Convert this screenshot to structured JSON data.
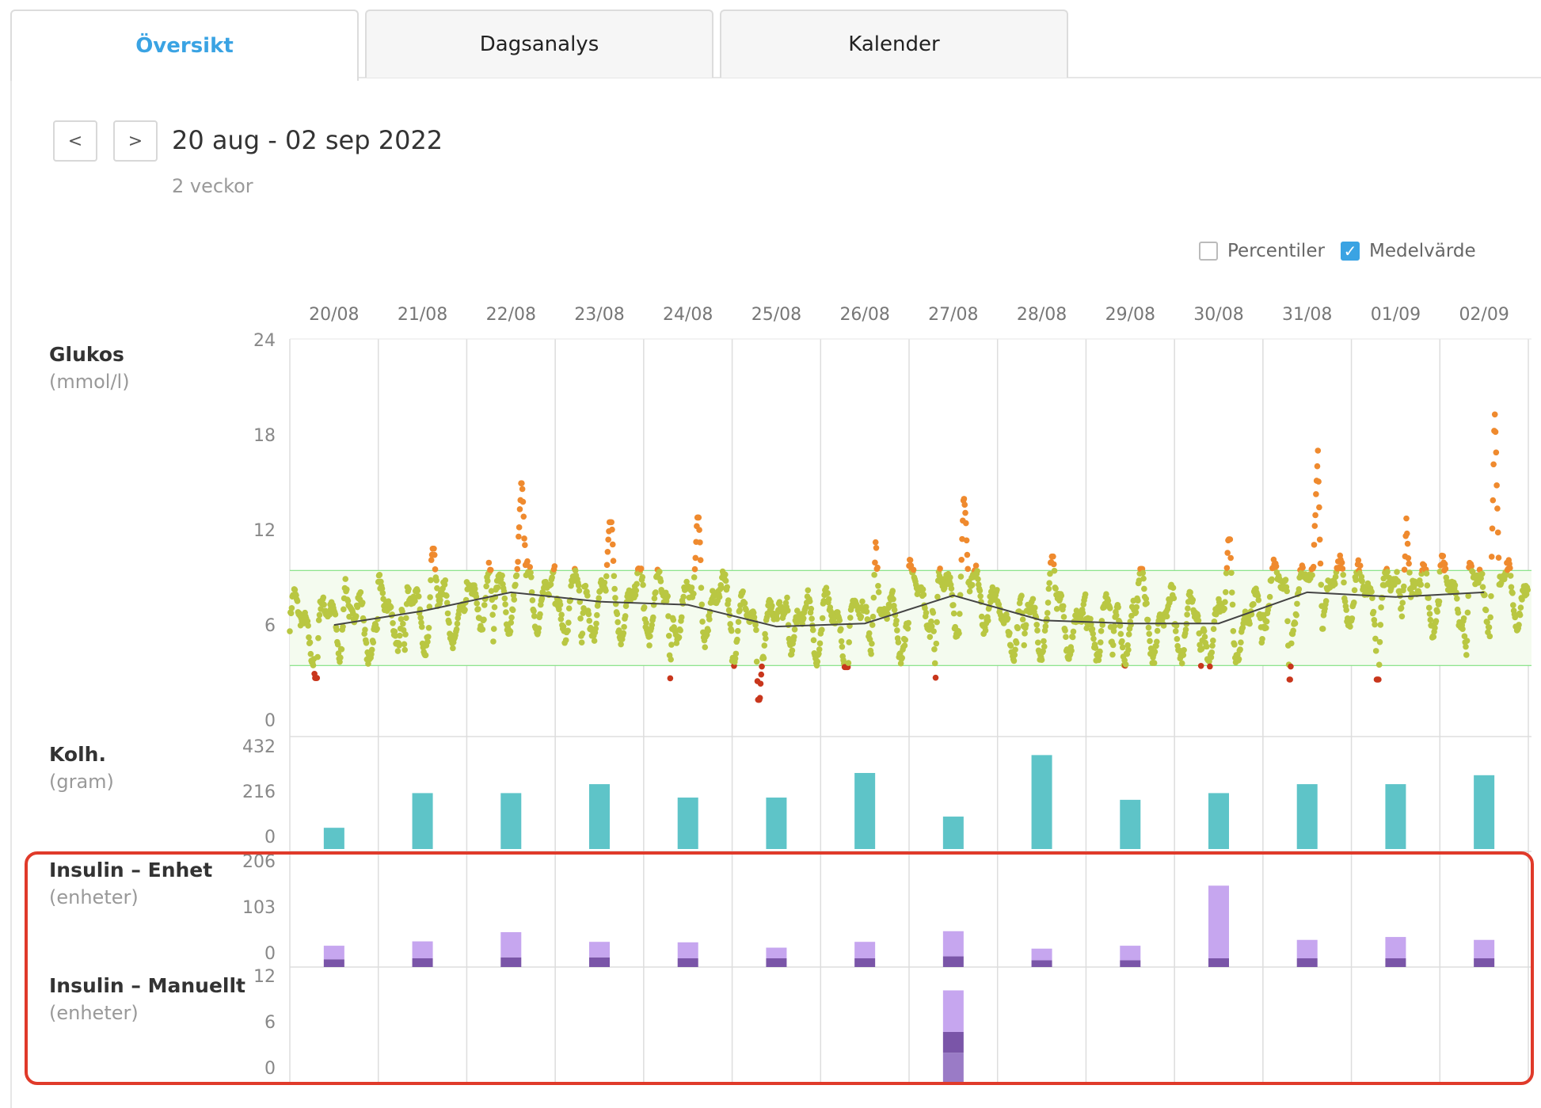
{
  "tabs": [
    {
      "label": "Översikt",
      "active": true
    },
    {
      "label": "Dagsanalys",
      "active": false
    },
    {
      "label": "Kalender",
      "active": false
    }
  ],
  "nav": {
    "prev": "<",
    "next": ">"
  },
  "period": {
    "title": "20 aug - 02 sep 2022",
    "subtitle": "2 veckor"
  },
  "options": {
    "percentiles_label": "Percentiler",
    "percentiles_checked": false,
    "mean_label": "Medelvärde",
    "mean_checked": true
  },
  "colors": {
    "accent": "#3aa3e3",
    "in_range": "#b9c742",
    "high": "#ef8a2e",
    "low": "#c8361c",
    "carbs": "#5ec4c8",
    "insulin_light": "#c6a6ef",
    "insulin_dark": "#7a55a8",
    "highlight": "#e03a2a",
    "target_band": "#7fe07f"
  },
  "chart_data": [
    {
      "type": "scatter",
      "title": "Glukos",
      "unit": "(mmol/l)",
      "categories": [
        "20/08",
        "21/08",
        "22/08",
        "23/08",
        "24/08",
        "25/08",
        "26/08",
        "27/08",
        "28/08",
        "29/08",
        "30/08",
        "31/08",
        "01/09",
        "02/09"
      ],
      "ylim": [
        0,
        24
      ],
      "yticks": [
        "0",
        "6",
        "12",
        "18",
        "24"
      ],
      "target_range": [
        3.9,
        10
      ],
      "daily_peak": [
        10.3,
        11.4,
        15.6,
        13.1,
        13.4,
        10.0,
        13.7,
        14.6,
        10.9,
        10.1,
        12.0,
        19.0,
        15.5,
        20.5
      ],
      "daily_low": [
        3.1,
        3.3,
        4.6,
        4.6,
        2.9,
        1.7,
        3.8,
        2.2,
        3.8,
        3.8,
        3.1,
        3.0,
        3.0,
        4.2
      ],
      "mean_line": [
        6.5,
        7.4,
        8.6,
        8.0,
        7.8,
        6.4,
        6.6,
        8.4,
        6.8,
        6.6,
        6.6,
        8.6,
        8.3,
        8.6
      ]
    },
    {
      "type": "bar",
      "title": "Kolh.",
      "unit": "(gram)",
      "ylim": [
        0,
        432
      ],
      "yticks": [
        "0",
        "216",
        "432"
      ],
      "values": [
        95,
        250,
        250,
        290,
        230,
        230,
        340,
        145,
        420,
        220,
        250,
        290,
        290,
        330
      ]
    },
    {
      "type": "bar",
      "title": "Insulin – Enhet",
      "unit": "(enheter)",
      "ylim": [
        0,
        206
      ],
      "yticks": [
        "0",
        "103",
        "206"
      ],
      "series": [
        {
          "values": [
            16,
            18,
            20,
            20,
            18,
            18,
            18,
            22,
            14,
            14,
            18,
            18,
            18,
            18
          ]
        },
        {
          "values": [
            28,
            35,
            52,
            32,
            33,
            22,
            34,
            52,
            24,
            30,
            150,
            38,
            44,
            38
          ]
        }
      ]
    },
    {
      "type": "bar",
      "title": "Insulin – Manuellt",
      "unit": "(enheter)",
      "ylim": [
        0,
        12
      ],
      "yticks": [
        "0",
        "6",
        "12"
      ],
      "series": [
        {
          "values": [
            0,
            0,
            0,
            0,
            0,
            0,
            0,
            3.5,
            0,
            0,
            0,
            0,
            0,
            0
          ]
        },
        {
          "values": [
            0,
            0,
            0,
            0,
            0,
            0,
            0,
            2.5,
            0,
            0,
            0,
            0,
            0,
            0
          ]
        },
        {
          "values": [
            0,
            0,
            0,
            0,
            0,
            0,
            0,
            5.0,
            0,
            0,
            0,
            0,
            0,
            0
          ]
        }
      ]
    }
  ]
}
